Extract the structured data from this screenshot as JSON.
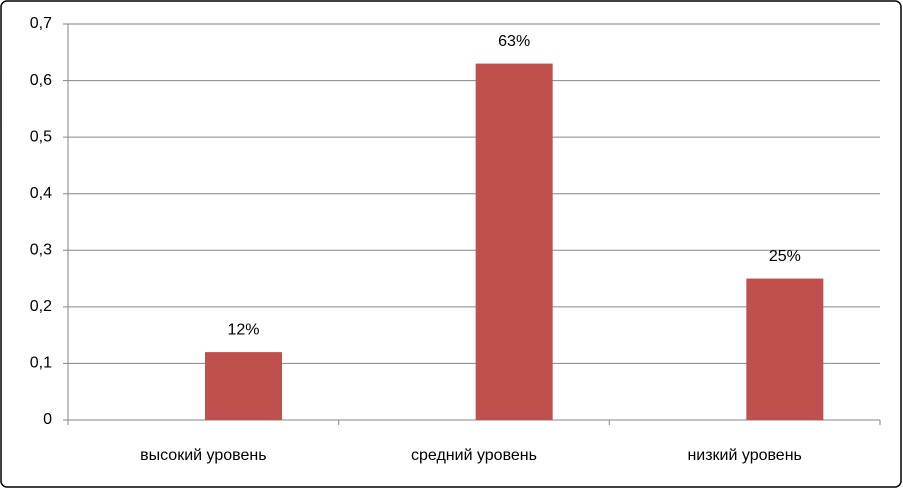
{
  "chart_data": {
    "type": "bar",
    "categories": [
      "высокий уровень",
      "средний уровень",
      "низкий уровень"
    ],
    "values": [
      0.12,
      0.63,
      0.25
    ],
    "value_labels": [
      "12%",
      "63%",
      "25%"
    ],
    "color": "#c0504d",
    "ylim": [
      0,
      0.7
    ],
    "yticks": [
      0,
      {
        "value": 0.1,
        "label": "0,1"
      },
      {
        "value": 0.2,
        "label": "0,2"
      },
      {
        "value": 0.3,
        "label": "0,3"
      },
      {
        "value": 0.4,
        "label": "0,4"
      },
      {
        "value": 0.5,
        "label": "0,5"
      },
      {
        "value": 0.6,
        "label": "0,6"
      },
      {
        "value": 0.7,
        "label": "0,7"
      }
    ],
    "grid": true
  }
}
